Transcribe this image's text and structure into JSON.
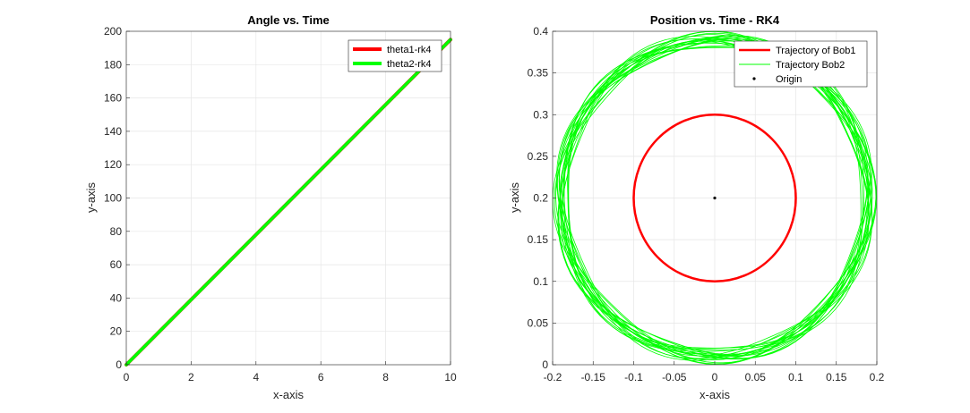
{
  "chart_data": [
    {
      "type": "line",
      "title": "Angle vs. Time",
      "xlabel": "x-axis",
      "ylabel": "y-axis",
      "xlim": [
        0,
        10
      ],
      "ylim": [
        0,
        200
      ],
      "xticks": [
        0,
        2,
        4,
        6,
        8,
        10
      ],
      "yticks": [
        0,
        20,
        40,
        60,
        80,
        100,
        120,
        140,
        160,
        180,
        200
      ],
      "grid": true,
      "legend_position": "top-right",
      "series": [
        {
          "name": "theta1-rk4",
          "color": "#ff0000",
          "x": [
            0,
            10
          ],
          "y": [
            0,
            195
          ]
        },
        {
          "name": "theta2-rk4",
          "color": "#00ff00",
          "x": [
            0,
            10
          ],
          "y": [
            0,
            195
          ]
        }
      ]
    },
    {
      "type": "line",
      "title": "Position vs. Time - RK4",
      "xlabel": "x-axis",
      "ylabel": "y-axis",
      "xlim": [
        -0.2,
        0.2
      ],
      "ylim": [
        0,
        0.4
      ],
      "xticks": [
        "-0.2",
        "-0.15",
        "-0.1",
        "-0.05",
        "0",
        "0.05",
        "0.1",
        "0.15",
        "0.2"
      ],
      "yticks": [
        "0",
        "0.05",
        "0.1",
        "0.15",
        "0.2",
        "0.25",
        "0.3",
        "0.35",
        "0.4"
      ],
      "grid": true,
      "legend_position": "top-right",
      "series": [
        {
          "name": "Trajectory of Bob1",
          "color": "#ff0000",
          "shape": "circle",
          "center": [
            0,
            0.2
          ],
          "radius": 0.1
        },
        {
          "name": "Trajectory Bob2",
          "color": "#00ff00",
          "shape": "ring",
          "center": [
            0,
            0.2
          ],
          "radius_min": 0.18,
          "radius_max": 0.2
        },
        {
          "name": "Origin",
          "color": "#000000",
          "shape": "point",
          "x": [
            0
          ],
          "y": [
            0.2
          ]
        }
      ]
    }
  ]
}
